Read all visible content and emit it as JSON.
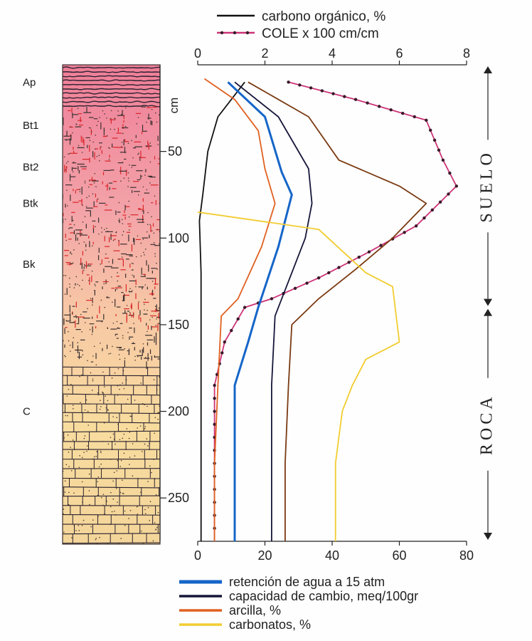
{
  "legend_top": [
    {
      "label": "carbono orgánico,  %",
      "color": "#111111",
      "marker": "none"
    },
    {
      "label": "COLE x 100 cm/cm",
      "color": "#cc3377",
      "marker": "dot"
    }
  ],
  "legend_bottom": [
    {
      "label": "retención de agua a 15 atm",
      "color": "#1565c8"
    },
    {
      "label": "capacidad de cambio,  meq/100gr",
      "color": "#16163a"
    },
    {
      "label": "arcilla,  %",
      "color": "#e06020"
    },
    {
      "label": "carbonatos,  %",
      "color": "#f2cc30"
    }
  ],
  "horizons": [
    {
      "label": "Ap",
      "depth": 10
    },
    {
      "label": "Bt1",
      "depth": 35
    },
    {
      "label": "Bt2",
      "depth": 59
    },
    {
      "label": "Btk",
      "depth": 80
    },
    {
      "label": "Bk",
      "depth": 115
    },
    {
      "label": "C",
      "depth": 200
    }
  ],
  "zones": [
    {
      "label": "SUELO",
      "from": 0,
      "to": 140
    },
    {
      "label": "ROCA",
      "from": 140,
      "to": 275
    }
  ],
  "chart_data": {
    "type": "line",
    "y_axis": {
      "unit": "cm",
      "ticks": [
        50,
        100,
        150,
        200,
        250
      ],
      "lim": [
        0,
        275
      ],
      "inverted": true
    },
    "x_top": {
      "ticks": [
        "0",
        "2",
        "4",
        "6",
        "8"
      ],
      "lim": [
        0,
        8
      ]
    },
    "x_bottom": {
      "ticks": [
        "0",
        "20",
        "40",
        "60",
        "80"
      ],
      "lim": [
        0,
        80
      ]
    },
    "grid": false,
    "series": [
      {
        "name": "carbono orgánico,  %",
        "axis": "top",
        "color": "#111111",
        "points": [
          [
            1.4,
            10
          ],
          [
            0.6,
            30
          ],
          [
            0.3,
            50
          ],
          [
            0.15,
            75
          ],
          [
            0.05,
            90
          ],
          [
            0.1,
            120
          ],
          [
            0.1,
            180
          ],
          [
            0.1,
            230
          ],
          [
            0.1,
            275
          ]
        ]
      },
      {
        "name": "COLE x 100 cm/cm",
        "axis": "top",
        "color": "#cc3377",
        "dots": true,
        "points": [
          [
            2.7,
            10
          ],
          [
            4.7,
            20
          ],
          [
            6.8,
            32
          ],
          [
            7.3,
            55
          ],
          [
            7.7,
            70
          ],
          [
            6.5,
            93
          ],
          [
            5.1,
            108
          ],
          [
            3.6,
            123
          ],
          [
            2.2,
            135
          ],
          [
            1.4,
            140
          ],
          [
            0.8,
            160
          ],
          [
            0.5,
            185
          ],
          [
            0.5,
            230
          ],
          [
            0.5,
            275
          ]
        ]
      },
      {
        "name": "retención de agua a 15 atm",
        "axis": "bottom",
        "color": "#1565c8",
        "points": [
          [
            9,
            10
          ],
          [
            20,
            30
          ],
          [
            25,
            62
          ],
          [
            28,
            75
          ],
          [
            24,
            105
          ],
          [
            18,
            140
          ],
          [
            15,
            160
          ],
          [
            11,
            185
          ],
          [
            11,
            230
          ],
          [
            11,
            275
          ]
        ]
      },
      {
        "name": "capacidad de cambio,  meq/100gr",
        "axis": "bottom",
        "color": "#16163a",
        "points": [
          [
            11,
            10
          ],
          [
            24,
            30
          ],
          [
            33,
            60
          ],
          [
            34,
            80
          ],
          [
            32,
            100
          ],
          [
            27,
            125
          ],
          [
            23,
            145
          ],
          [
            22,
            185
          ],
          [
            22,
            230
          ],
          [
            22,
            275
          ]
        ]
      },
      {
        "name": "arcilla,  %",
        "axis": "bottom",
        "color": "#e06020",
        "points": [
          [
            2,
            8
          ],
          [
            11,
            20
          ],
          [
            18,
            38
          ],
          [
            20,
            60
          ],
          [
            23,
            80
          ],
          [
            19,
            105
          ],
          [
            12,
            135
          ],
          [
            7,
            145
          ],
          [
            6,
            185
          ],
          [
            5,
            230
          ],
          [
            5,
            275
          ]
        ]
      },
      {
        "name": "",
        "axis": "bottom",
        "color": "#7a3a12",
        "points": [
          [
            15,
            10
          ],
          [
            33,
            30
          ],
          [
            42,
            55
          ],
          [
            60,
            70
          ],
          [
            68,
            80
          ],
          [
            58,
            100
          ],
          [
            47,
            118
          ],
          [
            36,
            135
          ],
          [
            28,
            150
          ],
          [
            27,
            185
          ],
          [
            26,
            230
          ],
          [
            26,
            275
          ]
        ]
      },
      {
        "name": "carbonatos,  %",
        "axis": "bottom",
        "color": "#f2cc30",
        "points": [
          [
            0,
            85
          ],
          [
            36,
            95
          ],
          [
            50,
            120
          ],
          [
            58,
            128
          ],
          [
            60,
            160
          ],
          [
            50,
            170
          ],
          [
            46,
            185
          ],
          [
            43,
            200
          ],
          [
            41,
            230
          ],
          [
            41,
            275
          ]
        ]
      }
    ]
  }
}
